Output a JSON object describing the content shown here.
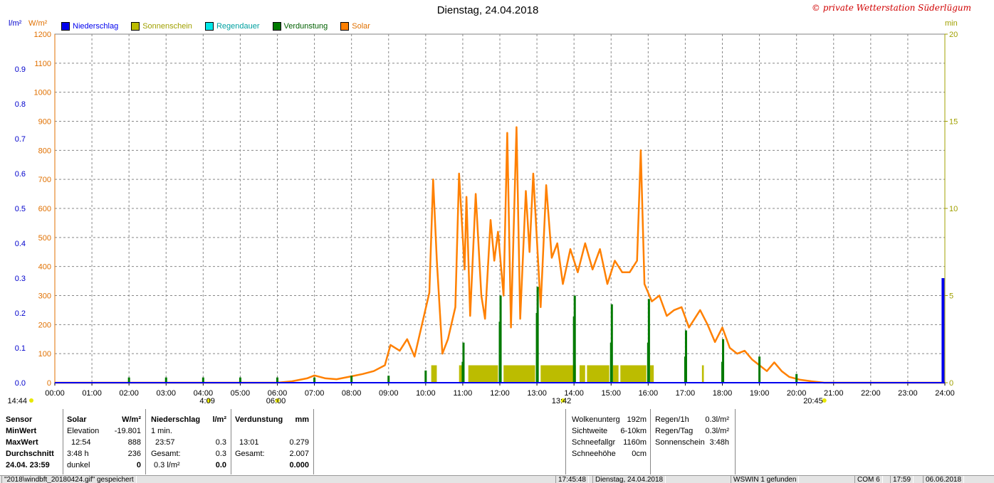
{
  "title": "Dienstag, 24.04.2018",
  "copyright": "© private Wetterstation Süderlügum",
  "legend": [
    {
      "label": "Niederschlag",
      "color": "#0000ee"
    },
    {
      "label": "Sonnenschein",
      "color": "#bcbc00"
    },
    {
      "label": "Regendauer",
      "color": "#00e8e8"
    },
    {
      "label": "Verdunstung",
      "color": "#007a00"
    },
    {
      "label": "Solar",
      "color": "#ff8000"
    }
  ],
  "units": {
    "left_precip": "l/m²",
    "left_solar": "W/m²",
    "right": "min"
  },
  "chart_data": {
    "type": "line",
    "x_range": [
      "00:00",
      "24:00"
    ],
    "x_ticks": [
      "00:00",
      "01:00",
      "02:00",
      "03:00",
      "04:00",
      "05:00",
      "06:00",
      "07:00",
      "08:00",
      "09:00",
      "10:00",
      "11:00",
      "12:00",
      "13:00",
      "14:00",
      "15:00",
      "16:00",
      "17:00",
      "18:00",
      "19:00",
      "20:00",
      "21:00",
      "22:00",
      "23:00",
      "24:00"
    ],
    "axes": {
      "precip": {
        "unit": "l/m²",
        "range": [
          0,
          1.0
        ],
        "ticks": [
          "0.0",
          "0.1",
          "0.2",
          "0.3",
          "0.4",
          "0.5",
          "0.6",
          "0.7",
          "0.8",
          "0.9"
        ],
        "color": "#0000cc"
      },
      "solar": {
        "unit": "W/m²",
        "range": [
          0,
          1200
        ],
        "ticks": [
          "0",
          "100",
          "200",
          "300",
          "400",
          "500",
          "600",
          "700",
          "800",
          "900",
          "1000",
          "1100",
          "1200"
        ],
        "color": "#e07000"
      },
      "minutes": {
        "unit": "min",
        "range": [
          0,
          20
        ],
        "ticks": [
          "0",
          "5",
          "10",
          "15",
          "20"
        ],
        "color": "#a0a000"
      }
    },
    "grid": true,
    "series": [
      {
        "name": "Solar",
        "color": "#ff8000",
        "points": [
          [
            0,
            0
          ],
          [
            6.0,
            0
          ],
          [
            6.4,
            5
          ],
          [
            6.8,
            15
          ],
          [
            7.0,
            25
          ],
          [
            7.3,
            15
          ],
          [
            7.6,
            12
          ],
          [
            8.0,
            22
          ],
          [
            8.3,
            30
          ],
          [
            8.6,
            40
          ],
          [
            8.9,
            60
          ],
          [
            9.05,
            130
          ],
          [
            9.3,
            110
          ],
          [
            9.5,
            150
          ],
          [
            9.7,
            90
          ],
          [
            9.9,
            200
          ],
          [
            10.1,
            310
          ],
          [
            10.2,
            700
          ],
          [
            10.3,
            420
          ],
          [
            10.45,
            100
          ],
          [
            10.6,
            150
          ],
          [
            10.8,
            260
          ],
          [
            10.9,
            720
          ],
          [
            11.05,
            390
          ],
          [
            11.1,
            640
          ],
          [
            11.2,
            230
          ],
          [
            11.35,
            650
          ],
          [
            11.5,
            300
          ],
          [
            11.6,
            220
          ],
          [
            11.75,
            560
          ],
          [
            11.85,
            420
          ],
          [
            11.95,
            520
          ],
          [
            12.1,
            300
          ],
          [
            12.2,
            860
          ],
          [
            12.3,
            190
          ],
          [
            12.45,
            880
          ],
          [
            12.55,
            220
          ],
          [
            12.7,
            660
          ],
          [
            12.8,
            450
          ],
          [
            12.9,
            720
          ],
          [
            13.1,
            260
          ],
          [
            13.25,
            680
          ],
          [
            13.4,
            430
          ],
          [
            13.55,
            480
          ],
          [
            13.7,
            340
          ],
          [
            13.9,
            460
          ],
          [
            14.1,
            380
          ],
          [
            14.3,
            480
          ],
          [
            14.5,
            390
          ],
          [
            14.7,
            460
          ],
          [
            14.9,
            340
          ],
          [
            15.1,
            420
          ],
          [
            15.3,
            380
          ],
          [
            15.5,
            380
          ],
          [
            15.7,
            420
          ],
          [
            15.8,
            800
          ],
          [
            15.9,
            340
          ],
          [
            16.1,
            280
          ],
          [
            16.3,
            300
          ],
          [
            16.5,
            230
          ],
          [
            16.7,
            250
          ],
          [
            16.9,
            260
          ],
          [
            17.1,
            190
          ],
          [
            17.4,
            250
          ],
          [
            17.6,
            200
          ],
          [
            17.8,
            140
          ],
          [
            18.0,
            190
          ],
          [
            18.2,
            120
          ],
          [
            18.4,
            100
          ],
          [
            18.6,
            110
          ],
          [
            18.8,
            80
          ],
          [
            19.0,
            60
          ],
          [
            19.2,
            40
          ],
          [
            19.4,
            70
          ],
          [
            19.6,
            40
          ],
          [
            19.8,
            20
          ],
          [
            20.1,
            10
          ],
          [
            20.4,
            5
          ],
          [
            20.75,
            0
          ],
          [
            24,
            0
          ]
        ]
      },
      {
        "name": "Niederschlag",
        "color": "#0000ee",
        "bars": [
          {
            "x": 23.95,
            "value": 0.3
          }
        ]
      },
      {
        "name": "Verdunstung",
        "color": "#007a00",
        "bars": [
          {
            "x": 2.0,
            "value": 0.3
          },
          {
            "x": 3.0,
            "value": 0.3
          },
          {
            "x": 4.0,
            "value": 0.3
          },
          {
            "x": 5.0,
            "value": 0.3
          },
          {
            "x": 6.0,
            "value": 0.3
          },
          {
            "x": 7.0,
            "value": 0.3
          },
          {
            "x": 8.0,
            "value": 0.4
          },
          {
            "x": 9.0,
            "value": 0.4
          },
          {
            "x": 10.0,
            "value": 0.7
          },
          {
            "x": 11.0,
            "value": 1.2
          },
          {
            "x": 11.02,
            "value": 2.3
          },
          {
            "x": 12.0,
            "value": 3.5
          },
          {
            "x": 12.02,
            "value": 5.0
          },
          {
            "x": 13.0,
            "value": 4.0
          },
          {
            "x": 13.02,
            "value": 5.5
          },
          {
            "x": 14.0,
            "value": 3.8
          },
          {
            "x": 14.02,
            "value": 5.0
          },
          {
            "x": 15.0,
            "value": 2.3
          },
          {
            "x": 15.02,
            "value": 4.5
          },
          {
            "x": 16.0,
            "value": 2.3
          },
          {
            "x": 16.02,
            "value": 4.8
          },
          {
            "x": 17.0,
            "value": 1.5
          },
          {
            "x": 17.02,
            "value": 3.0
          },
          {
            "x": 18.0,
            "value": 1.2
          },
          {
            "x": 18.02,
            "value": 2.5
          },
          {
            "x": 19.0,
            "value": 1.5
          },
          {
            "x": 20.0,
            "value": 0.5
          }
        ]
      },
      {
        "name": "Sonnenschein",
        "color": "#bcbc00",
        "spans": [
          [
            10.15,
            10.3
          ],
          [
            10.9,
            11.0
          ],
          [
            11.15,
            11.95
          ],
          [
            12.1,
            12.95
          ],
          [
            13.1,
            14.05
          ],
          [
            14.15,
            14.3
          ],
          [
            14.35,
            14.95
          ],
          [
            15.05,
            15.2
          ],
          [
            15.25,
            15.95
          ],
          [
            16.05,
            16.15
          ],
          [
            17.45,
            17.5
          ]
        ],
        "level": 1.0
      }
    ],
    "markers": [
      {
        "label": "14:44",
        "x": 0.0
      },
      {
        "label": "4:09",
        "x": 4.15
      },
      {
        "label": "06:00",
        "x": 6.0
      },
      {
        "label": "13:42",
        "x": 13.7
      },
      {
        "label": "20:45",
        "x": 20.75
      }
    ]
  },
  "stats": {
    "sensor": {
      "header": "Sensor",
      "rows": [
        "MinWert",
        "MaxWert",
        "Durchschnitt",
        "24.04. 23:59"
      ]
    },
    "solar": {
      "header": "Solar",
      "unit": "W/m²",
      "rows": [
        [
          "Elevation",
          "-19.801"
        ],
        [
          "12:54",
          "888"
        ],
        [
          "3:48 h",
          "236"
        ],
        [
          "dunkel",
          "0"
        ]
      ]
    },
    "precip": {
      "header": "Niederschlag",
      "unit": "l/m²",
      "rows": [
        [
          "1 min.",
          ""
        ],
        [
          "23:57",
          "0.3"
        ],
        [
          "Gesamt:",
          "0.3"
        ],
        [
          "0.3 l/m²",
          "0.0"
        ]
      ]
    },
    "evap": {
      "header": "Verdunstung",
      "unit": "mm",
      "rows": [
        [
          "",
          ""
        ],
        [
          "13:01",
          "0.279"
        ],
        [
          "Gesamt:",
          "2.007"
        ],
        [
          "",
          "0.000"
        ]
      ]
    },
    "weather": [
      [
        "Wolkenunterg",
        "192m"
      ],
      [
        "Sichtweite",
        "6-10km"
      ],
      [
        "Schneefallgr",
        "1160m"
      ],
      [
        "Schneehöhe",
        "0cm"
      ]
    ],
    "rain": [
      [
        "Regen/1h",
        "0.3l/m²"
      ],
      [
        "Regen/Tag",
        "0.3l/m²"
      ],
      [
        "Sonnenschein",
        "3:48h"
      ]
    ]
  },
  "statusbar": {
    "file": "\"2018\\windbft_20180424.gif\" gespeichert",
    "time": "17:45:48",
    "date": "Dienstag, 24.04.2018",
    "found": "WSWIN 1 gefunden",
    "port": "COM 6",
    "clock": "17:59",
    "today": "06.06.2018"
  }
}
